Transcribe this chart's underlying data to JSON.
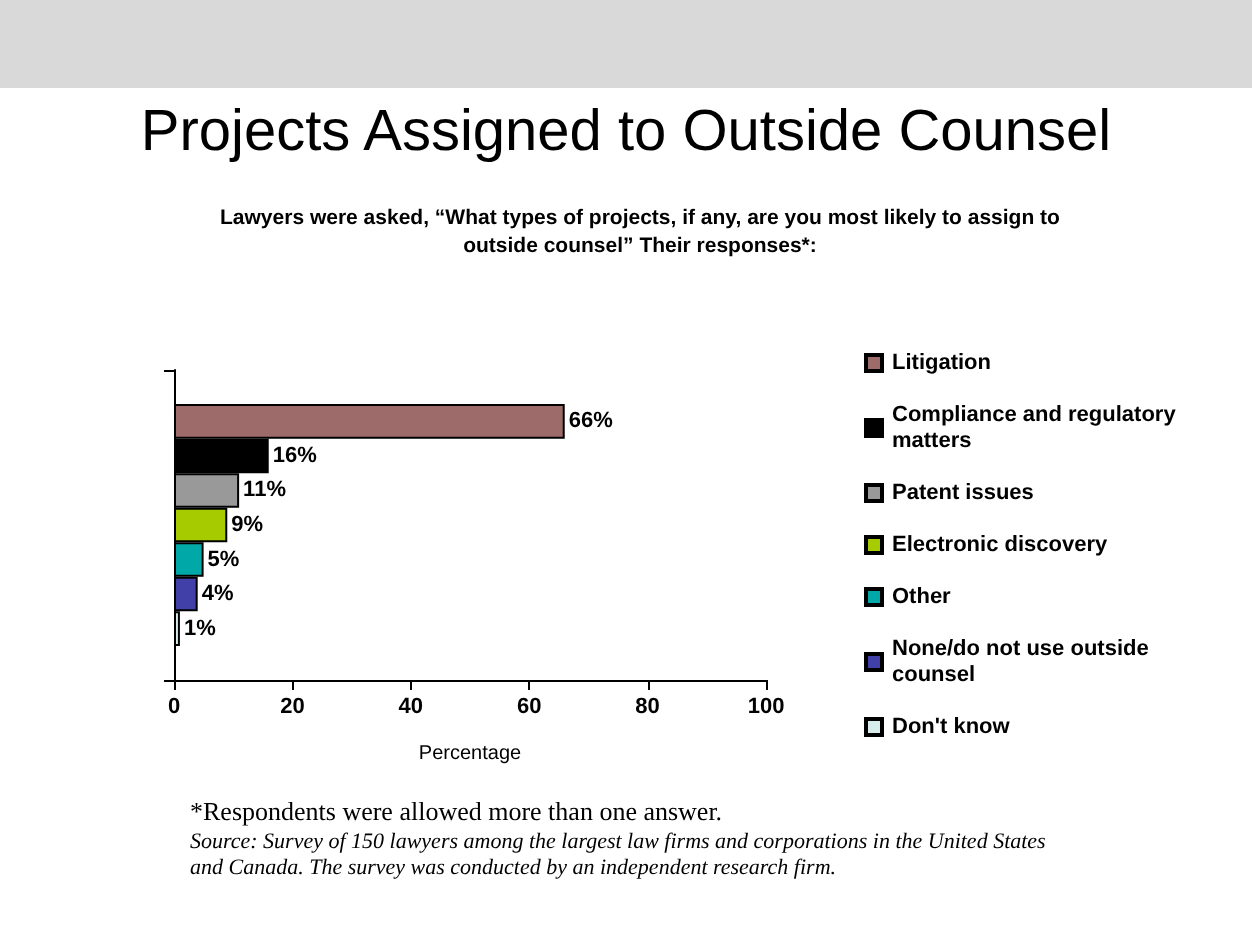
{
  "chart_data": {
    "type": "bar",
    "orientation": "horizontal",
    "title": "Projects Assigned to Outside Counsel",
    "subtitle": "Lawyers were asked, “What types of projects, if any, are you most likely to assign to outside counsel” Their responses*:",
    "xlabel": "Percentage",
    "categories": [
      null
    ],
    "series": [
      {
        "name": "Litigation",
        "color": "#9e6b6b",
        "values": [
          66
        ],
        "value_labels": [
          "66%"
        ]
      },
      {
        "name": "Compliance and regulatory matters",
        "color": "#000000",
        "values": [
          16
        ],
        "value_labels": [
          "16%"
        ]
      },
      {
        "name": "Patent issues",
        "color": "#999999",
        "values": [
          11
        ],
        "value_labels": [
          "11%"
        ]
      },
      {
        "name": "Electronic discovery",
        "color": "#a6cc00",
        "values": [
          9
        ],
        "value_labels": [
          "9%"
        ]
      },
      {
        "name": "Other",
        "color": "#00a8a8",
        "values": [
          5
        ],
        "value_labels": [
          "5%"
        ]
      },
      {
        "name": "None/do not use outside counsel",
        "color": "#4040a8",
        "values": [
          4
        ],
        "value_labels": [
          "4%"
        ]
      },
      {
        "name": "Don't know",
        "color": "#d8ecec",
        "values": [
          1
        ],
        "value_labels": [
          "1%"
        ]
      }
    ],
    "xlim": [
      0,
      100
    ],
    "xticks": [
      0,
      20,
      40,
      60,
      80,
      100
    ],
    "grid": false,
    "legend": "right",
    "annotations": [
      "*Respondents were allowed more than one answer.",
      "Source: Survey of 150 lawyers among the largest law firms and corporations in the United States and Canada. The survey was conducted by an independent research firm."
    ]
  }
}
